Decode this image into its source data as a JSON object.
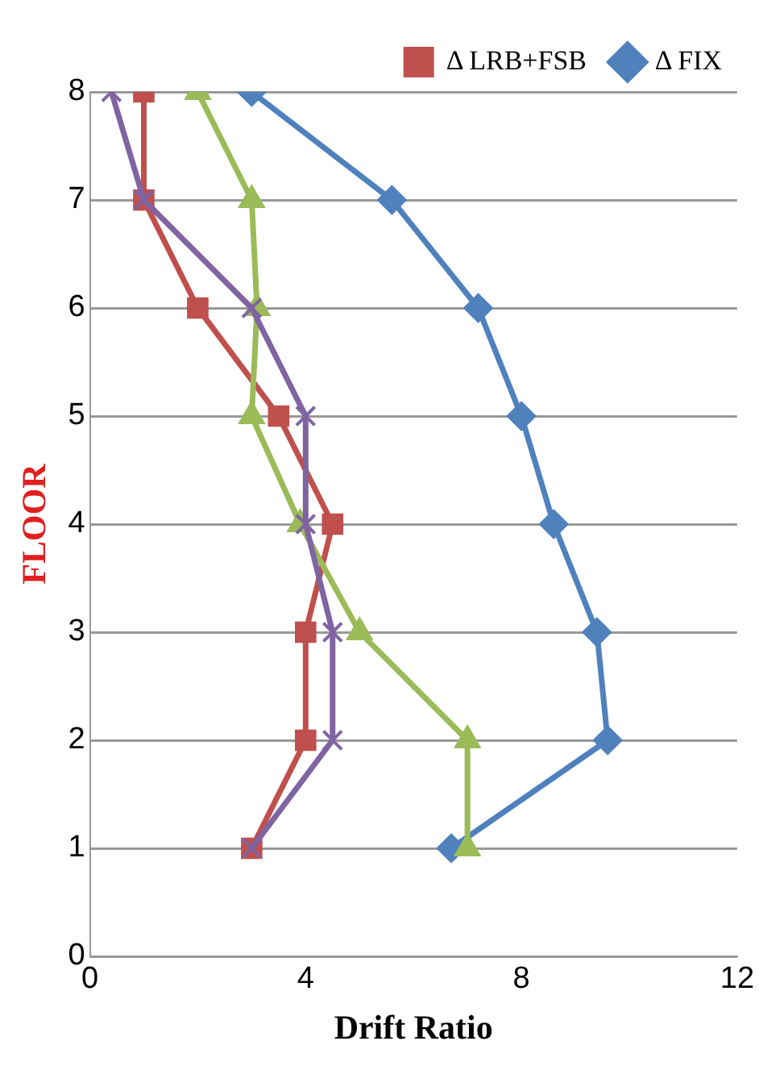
{
  "chart_data": {
    "type": "line",
    "xlabel": "Drift Ratio",
    "ylabel": "FLOOR",
    "xlim": [
      0,
      12
    ],
    "xticks": [
      0,
      4,
      8,
      12
    ],
    "ylim": [
      0,
      8
    ],
    "yticks": [
      0,
      1,
      2,
      3,
      4,
      5,
      6,
      7,
      8
    ],
    "grid": "y",
    "legend": "top right",
    "line_style": "solid",
    "series": [
      {
        "name": "Δ FIX",
        "color": "#4f81bd",
        "marker": "diamond",
        "x": [
          6.7,
          9.6,
          9.4,
          8.6,
          8,
          7.2,
          5.6,
          3
        ],
        "values": [
          1,
          2,
          3,
          4,
          5,
          6,
          7,
          8
        ]
      },
      {
        "name": "Δ LRB+FSB",
        "color": "#c0504d",
        "marker": "square",
        "x": [
          3,
          4,
          4,
          4.5,
          3.5,
          2,
          1,
          1
        ],
        "values": [
          1,
          2,
          3,
          4,
          5,
          6,
          7,
          8
        ]
      },
      {
        "color": "#9bbb59",
        "marker": "triangle",
        "x": [
          7,
          7,
          5,
          3.9,
          3,
          3.1,
          3,
          2
        ],
        "values": [
          1,
          2,
          3,
          4,
          5,
          6,
          7,
          8
        ]
      },
      {
        "color": "#8064a2",
        "marker": "cross",
        "x": [
          3,
          4.5,
          4.5,
          4,
          4,
          3,
          1,
          0.4
        ],
        "values": [
          1,
          2,
          3,
          4,
          5,
          6,
          7,
          8
        ]
      }
    ]
  }
}
